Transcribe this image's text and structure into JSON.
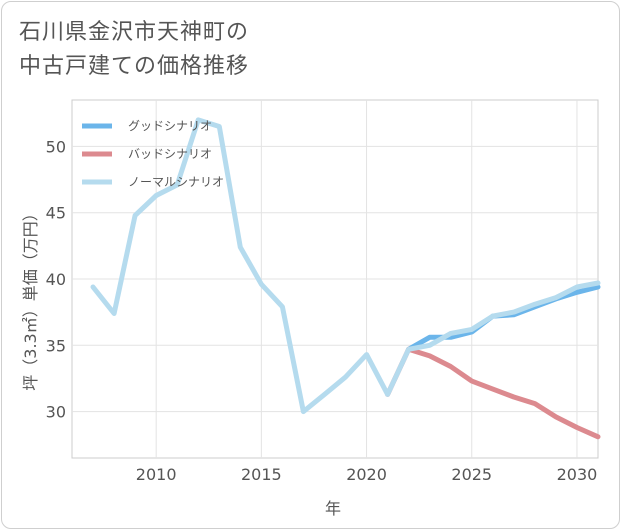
{
  "title": {
    "line1": "石川県金沢市天神町の",
    "line2": "中古戸建ての価格推移"
  },
  "chart_data": {
    "type": "line",
    "xlabel": "年",
    "ylabel": "坪（3.3㎡）単価（万円）",
    "xlim": [
      2006,
      2031
    ],
    "ylim": [
      26.5,
      53.5
    ],
    "xticks": [
      2010,
      2015,
      2020,
      2025,
      2030
    ],
    "yticks": [
      30,
      35,
      40,
      45,
      50
    ],
    "grid": true,
    "legend_position": "top-left",
    "series": [
      {
        "name": "グッドシナリオ",
        "color": "#6bb5ea",
        "x": [
          2022,
          2023,
          2024,
          2025,
          2026,
          2027,
          2028,
          2029,
          2030,
          2031
        ],
        "values": [
          34.7,
          35.6,
          35.6,
          36.0,
          37.2,
          37.3,
          37.9,
          38.5,
          39.0,
          39.4
        ]
      },
      {
        "name": "バッドシナリオ",
        "color": "#dc8a8f",
        "x": [
          2021,
          2022,
          2023,
          2024,
          2025,
          2026,
          2027,
          2028,
          2029,
          2030,
          2031
        ],
        "values": [
          31.3,
          34.7,
          34.2,
          33.4,
          32.3,
          31.7,
          31.1,
          30.6,
          29.6,
          28.8,
          28.1
        ]
      },
      {
        "name": "ノーマルシナリオ",
        "color": "#b5dbee",
        "x": [
          2007,
          2008,
          2009,
          2010,
          2011,
          2012,
          2013,
          2014,
          2015,
          2016,
          2017,
          2018,
          2019,
          2020,
          2021,
          2022,
          2023,
          2024,
          2025,
          2026,
          2027,
          2028,
          2029,
          2030,
          2031
        ],
        "values": [
          39.4,
          37.4,
          44.8,
          46.3,
          47.1,
          52.0,
          51.5,
          42.4,
          39.6,
          37.9,
          30.0,
          31.3,
          32.6,
          34.3,
          31.3,
          34.7,
          35.0,
          35.9,
          36.2,
          37.2,
          37.5,
          38.1,
          38.6,
          39.4,
          39.7
        ]
      }
    ]
  }
}
